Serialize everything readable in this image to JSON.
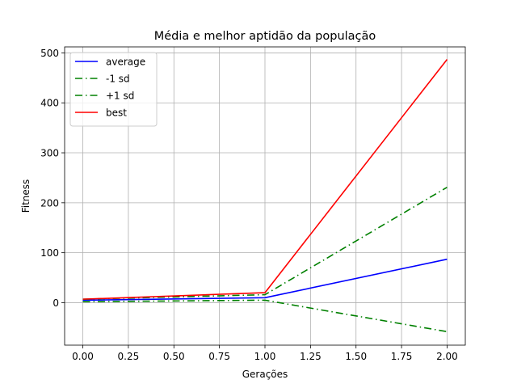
{
  "chart_data": {
    "type": "line",
    "title": "Média e melhor aptidão da população",
    "xlabel": "Gerações",
    "ylabel": "Fitness",
    "xlim": [
      -0.1,
      2.1
    ],
    "ylim": [
      -85,
      512
    ],
    "xticks": [
      0.0,
      0.25,
      0.5,
      0.75,
      1.0,
      1.25,
      1.5,
      1.75,
      2.0
    ],
    "xtick_labels": [
      "0.00",
      "0.25",
      "0.50",
      "0.75",
      "1.00",
      "1.25",
      "1.50",
      "1.75",
      "2.00"
    ],
    "yticks": [
      0,
      100,
      200,
      300,
      400,
      500
    ],
    "ytick_labels": [
      "0",
      "100",
      "200",
      "300",
      "400",
      "500"
    ],
    "grid": true,
    "legend_position": "top-left",
    "x": [
      0,
      1,
      2
    ],
    "series": [
      {
        "name": "average",
        "values": [
          5,
          10,
          87
        ],
        "color": "#0000ff",
        "dash": "solid"
      },
      {
        "name": "-1 sd",
        "values": [
          2,
          5,
          -58
        ],
        "color": "#008000",
        "dash": "dashdot"
      },
      {
        "name": "+1 sd",
        "values": [
          7,
          16,
          231
        ],
        "color": "#008000",
        "dash": "dashdot"
      },
      {
        "name": "best",
        "values": [
          7,
          20,
          487
        ],
        "color": "#ff0000",
        "dash": "solid"
      }
    ]
  }
}
